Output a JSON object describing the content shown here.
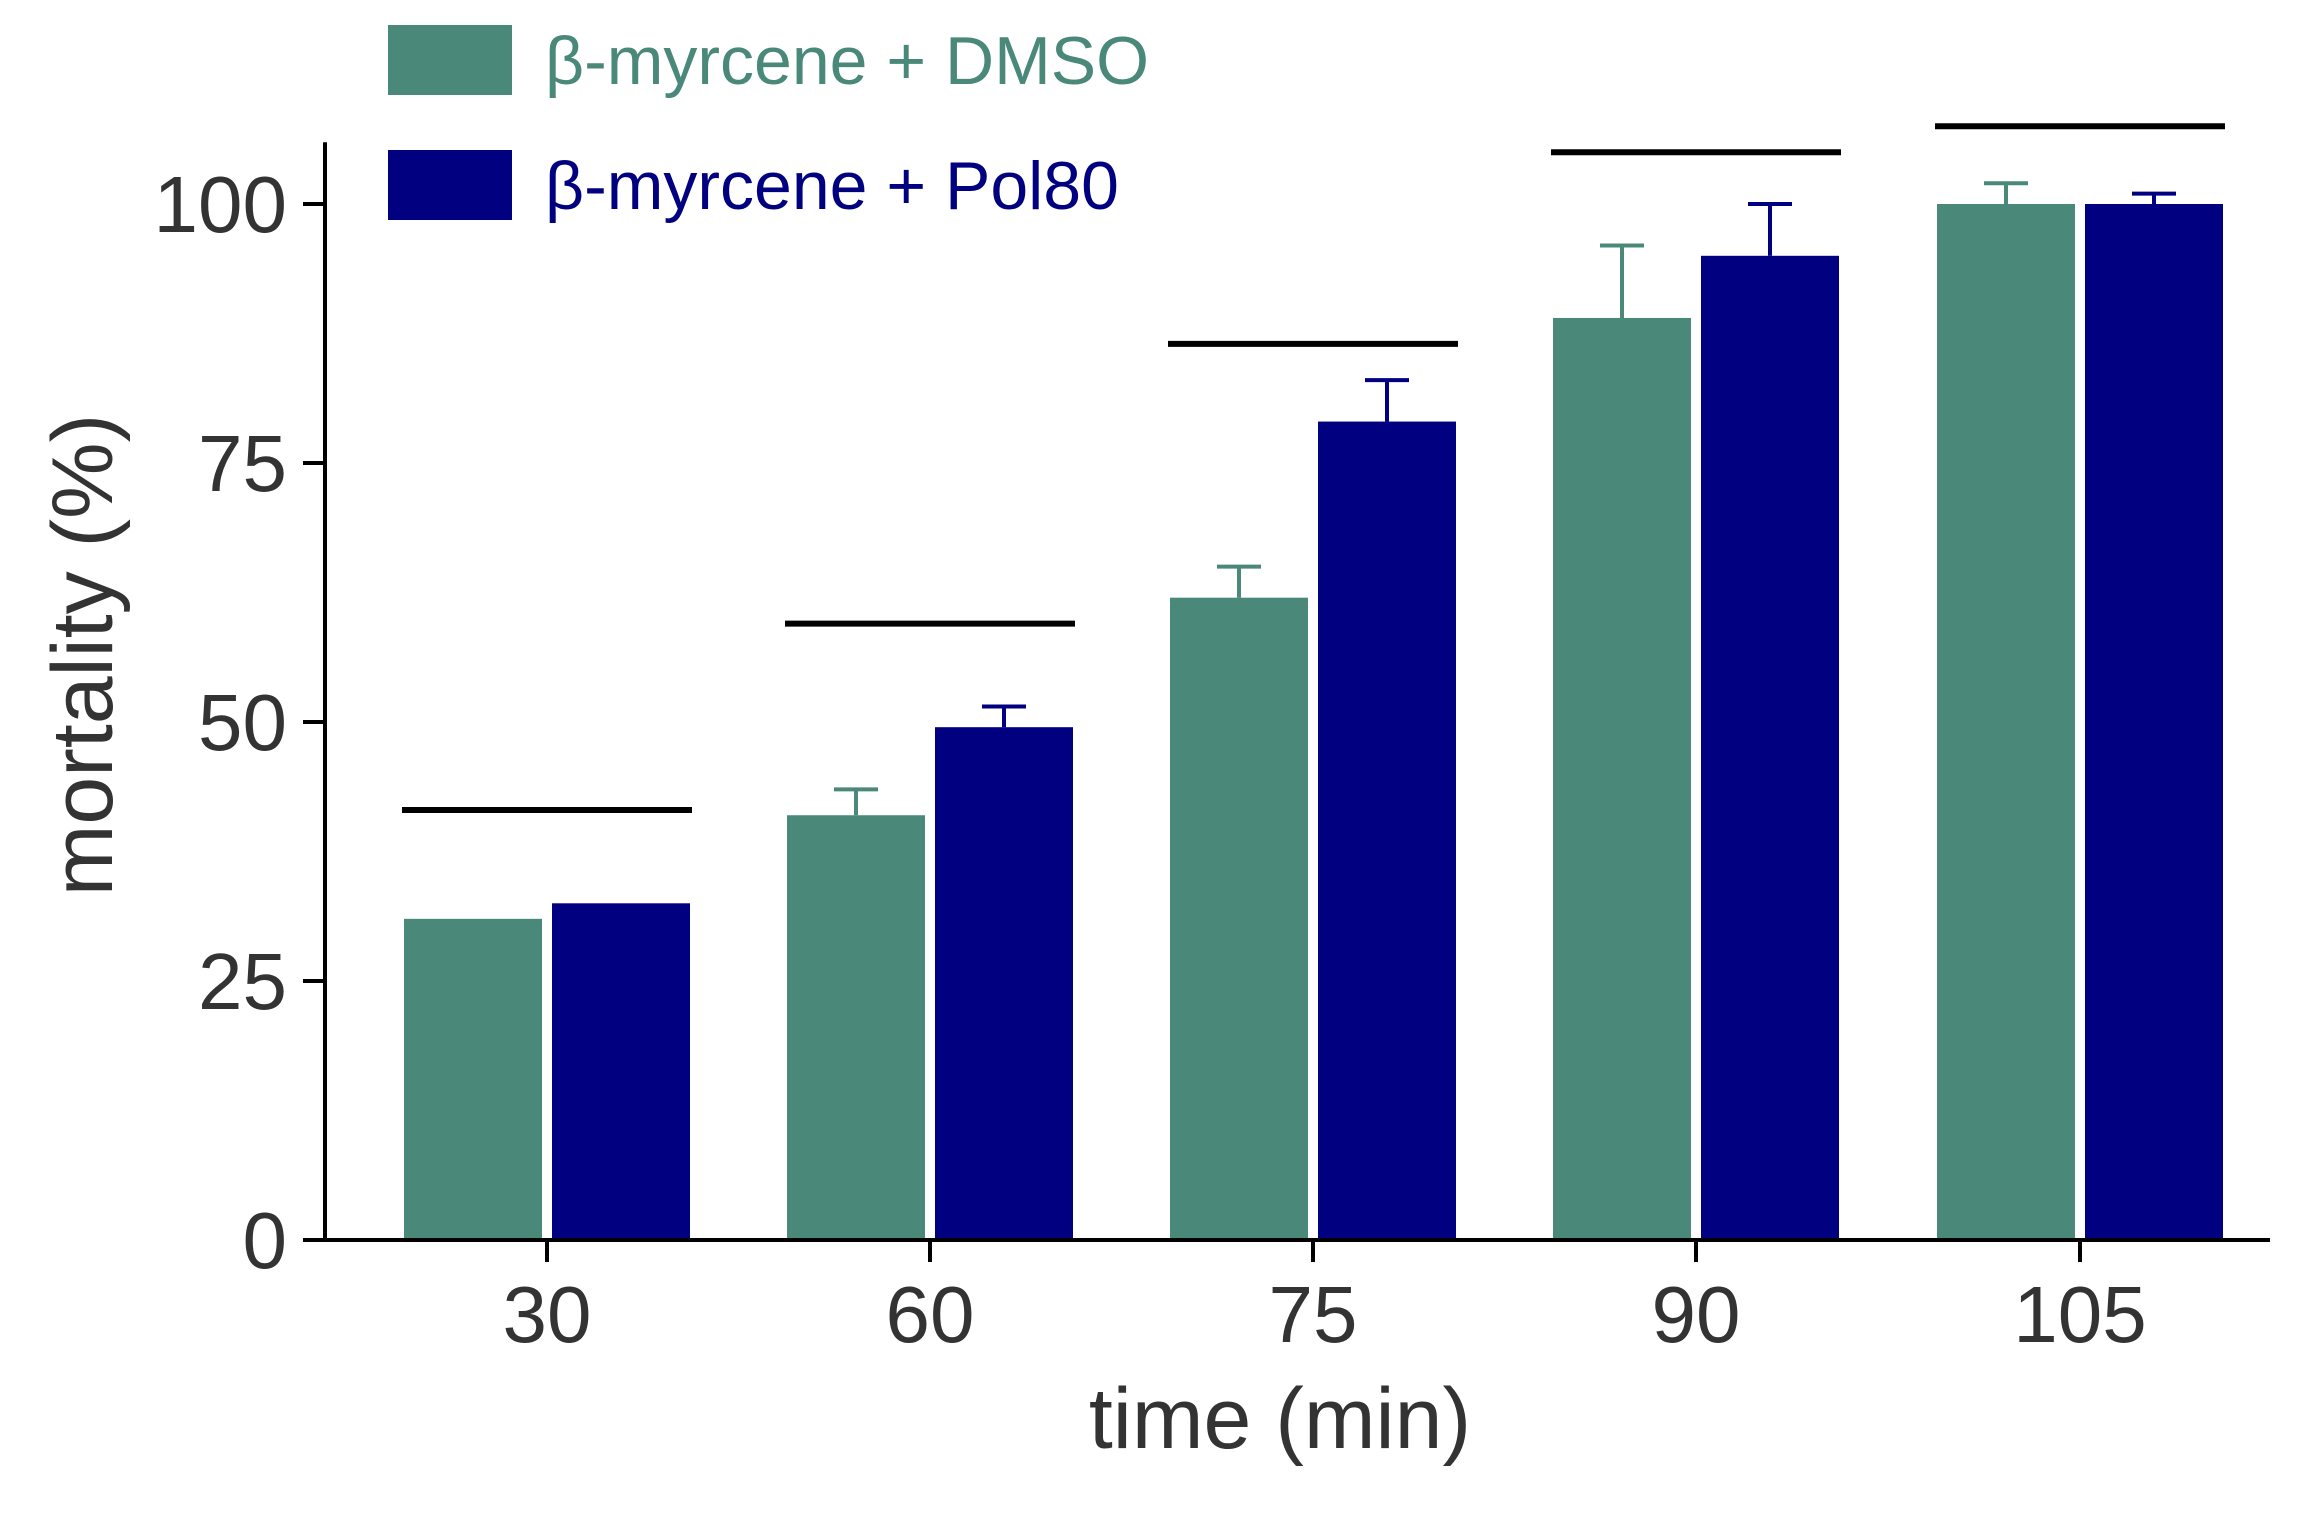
{
  "chart_data": {
    "type": "bar",
    "title": "",
    "xlabel": "time (min)",
    "ylabel": "mortality (%)",
    "categories": [
      "30",
      "60",
      "75",
      "90",
      "105"
    ],
    "ylim": [
      0,
      105
    ],
    "yticks": [
      0,
      25,
      50,
      75,
      100
    ],
    "ytick_labels": [
      "0",
      "25",
      "50",
      "75",
      "100"
    ],
    "grid": false,
    "legend_position": "top-left",
    "series": [
      {
        "name": "β-myrcene + DMSO",
        "color": "#4a887a",
        "values": [
          31,
          41,
          62,
          89,
          100
        ],
        "errors": [
          0,
          2.5,
          3,
          7,
          2
        ]
      },
      {
        "name": "β-myrcene + Pol80",
        "color": "#000080",
        "values": [
          32.5,
          49.5,
          79,
          95,
          100
        ],
        "errors": [
          0,
          2,
          4,
          5,
          1
        ]
      }
    ],
    "comparison_brackets": [
      41.5,
      59.5,
      86.5,
      105,
      107.5
    ]
  }
}
